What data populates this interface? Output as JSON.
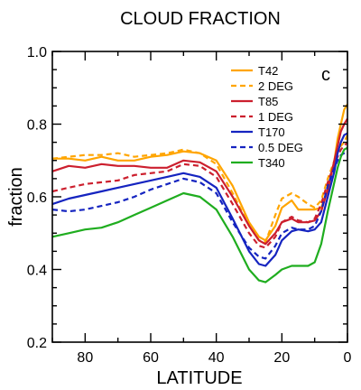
{
  "chart_data": {
    "type": "line",
    "title": "CLOUD FRACTION",
    "xlabel": "LATITUDE",
    "ylabel": "fraction",
    "panel_label": "c",
    "xlim": [
      90,
      0
    ],
    "ylim": [
      0.2,
      1.0
    ],
    "x_reversed": true,
    "xticks": [
      80,
      60,
      40,
      20,
      0
    ],
    "yticks": [
      0.2,
      0.4,
      0.6,
      0.8,
      1.0
    ],
    "ytick_labels": [
      "0.2",
      "0.4",
      "0.6",
      "0.8",
      "1.0"
    ],
    "legend_position": "top-right",
    "grid": false,
    "x": [
      90,
      85,
      80,
      75,
      70,
      65,
      60,
      55,
      50,
      45,
      40,
      35,
      30,
      27,
      25,
      22,
      20,
      17,
      15,
      12,
      10,
      8,
      6,
      4,
      3,
      2,
      1,
      0
    ],
    "series": [
      {
        "name": "T42",
        "color": "#FFA500",
        "dash": "solid",
        "values": [
          0.705,
          0.705,
          0.7,
          0.71,
          0.7,
          0.7,
          0.71,
          0.715,
          0.725,
          0.72,
          0.7,
          0.63,
          0.53,
          0.49,
          0.48,
          0.52,
          0.57,
          0.59,
          0.565,
          0.565,
          0.565,
          0.57,
          0.62,
          0.7,
          0.76,
          0.8,
          0.84,
          0.855
        ]
      },
      {
        "name": "2 DEG",
        "color": "#FFA500",
        "dash": "dashed",
        "values": [
          0.705,
          0.71,
          0.715,
          0.715,
          0.72,
          0.71,
          0.715,
          0.72,
          0.73,
          0.72,
          0.69,
          0.61,
          0.52,
          0.48,
          0.475,
          0.55,
          0.595,
          0.61,
          0.6,
          0.58,
          0.57,
          0.59,
          0.65,
          0.7,
          0.73,
          0.74,
          0.75,
          0.77
        ]
      },
      {
        "name": "T85",
        "color": "#CC1F2E",
        "dash": "solid",
        "values": [
          0.67,
          0.685,
          0.68,
          0.69,
          0.685,
          0.685,
          0.68,
          0.68,
          0.7,
          0.695,
          0.67,
          0.6,
          0.52,
          0.48,
          0.47,
          0.5,
          0.53,
          0.54,
          0.53,
          0.53,
          0.535,
          0.56,
          0.62,
          0.7,
          0.74,
          0.78,
          0.8,
          0.815
        ]
      },
      {
        "name": "1 DEG",
        "color": "#CC1F2E",
        "dash": "dashed",
        "values": [
          0.615,
          0.625,
          0.635,
          0.64,
          0.645,
          0.66,
          0.665,
          0.67,
          0.69,
          0.685,
          0.655,
          0.58,
          0.5,
          0.465,
          0.46,
          0.49,
          0.53,
          0.545,
          0.535,
          0.53,
          0.54,
          0.58,
          0.64,
          0.69,
          0.71,
          0.73,
          0.74,
          0.75
        ]
      },
      {
        "name": "T170",
        "color": "#1524C0",
        "dash": "solid",
        "values": [
          0.58,
          0.595,
          0.605,
          0.615,
          0.625,
          0.635,
          0.645,
          0.655,
          0.665,
          0.655,
          0.625,
          0.54,
          0.45,
          0.415,
          0.41,
          0.44,
          0.48,
          0.505,
          0.51,
          0.505,
          0.51,
          0.53,
          0.6,
          0.67,
          0.72,
          0.75,
          0.77,
          0.775
        ]
      },
      {
        "name": "0.5 DEG",
        "color": "#1524C0",
        "dash": "dashed",
        "values": [
          0.565,
          0.56,
          0.565,
          0.575,
          0.585,
          0.6,
          0.62,
          0.635,
          0.65,
          0.64,
          0.61,
          0.53,
          0.46,
          0.435,
          0.43,
          0.465,
          0.5,
          0.515,
          0.51,
          0.51,
          0.52,
          0.56,
          0.63,
          0.68,
          0.7,
          0.715,
          0.72,
          0.725
        ]
      },
      {
        "name": "T340",
        "color": "#1FAD1F",
        "dash": "solid",
        "values": [
          0.49,
          0.5,
          0.51,
          0.515,
          0.53,
          0.55,
          0.57,
          0.59,
          0.61,
          0.6,
          0.565,
          0.49,
          0.4,
          0.37,
          0.365,
          0.385,
          0.4,
          0.41,
          0.41,
          0.41,
          0.42,
          0.47,
          0.56,
          0.64,
          0.68,
          0.71,
          0.73,
          0.735
        ]
      }
    ]
  }
}
